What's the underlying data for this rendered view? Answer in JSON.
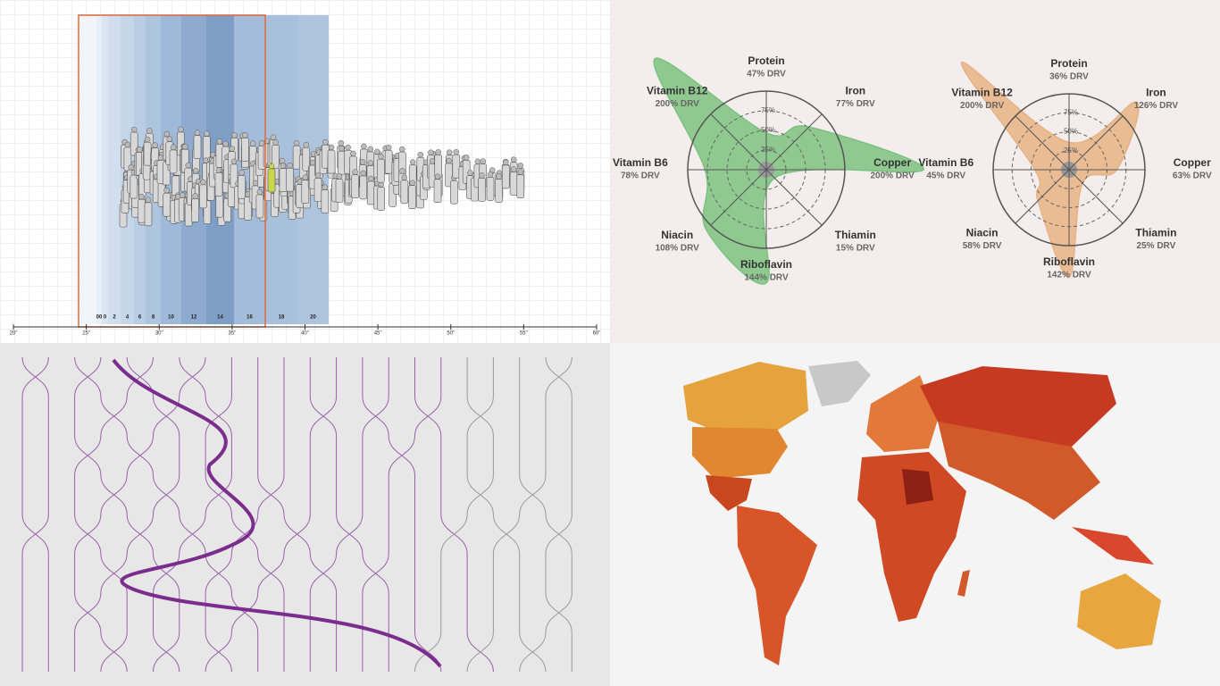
{
  "chart_data": [
    {
      "type": "pictogram",
      "categories": [
        "00",
        "0",
        "2",
        "4",
        "6",
        "8",
        "10",
        "12",
        "14",
        "16",
        "18",
        "20"
      ],
      "xlim": [
        20,
        60
      ],
      "xticks": [
        {
          "value": 20,
          "label": "20\""
        },
        {
          "value": 25,
          "label": "25\""
        },
        {
          "value": 30,
          "label": "30\""
        },
        {
          "value": 35,
          "label": "35\""
        },
        {
          "value": 40,
          "label": "40\""
        },
        {
          "value": 45,
          "label": "45\""
        },
        {
          "value": 50,
          "label": "50\""
        },
        {
          "value": 55,
          "label": "55\""
        },
        {
          "value": 60,
          "label": "60\""
        }
      ]
    },
    {
      "type": "radar",
      "categories": [
        "Protein",
        "Iron",
        "Copper",
        "Thiamin",
        "Riboflavin",
        "Niacin",
        "Vitamin B6",
        "Vitamin B12"
      ],
      "values": [
        47,
        77,
        200,
        15,
        144,
        108,
        78,
        200
      ],
      "value_labels": [
        "47% DRV",
        "77% DRV",
        "200% DRV",
        "15% DRV",
        "144% DRV",
        "108% DRV",
        "78% DRV",
        "200% DRV"
      ],
      "color": "#7cc27f",
      "rlim": [
        0,
        100
      ],
      "rticks": [
        {
          "value": 25,
          "label": "25%"
        },
        {
          "value": 50,
          "label": "50%"
        },
        {
          "value": 75,
          "label": "75%"
        }
      ]
    },
    {
      "type": "radar",
      "categories": [
        "Protein",
        "Iron",
        "Copper",
        "Thiamin",
        "Riboflavin",
        "Niacin",
        "Vitamin B6",
        "Vitamin B12"
      ],
      "values": [
        36,
        126,
        63,
        25,
        142,
        58,
        45,
        200
      ],
      "value_labels": [
        "36% DRV",
        "126% DRV",
        "63% DRV",
        "25% DRV",
        "142% DRV",
        "58% DRV",
        "45% DRV",
        "200% DRV"
      ],
      "color": "#e8b384",
      "rlim": [
        0,
        100
      ],
      "rticks": [
        {
          "value": 25,
          "label": "25%"
        },
        {
          "value": 50,
          "label": "50%"
        },
        {
          "value": 75,
          "label": "75%"
        }
      ]
    }
  ]
}
